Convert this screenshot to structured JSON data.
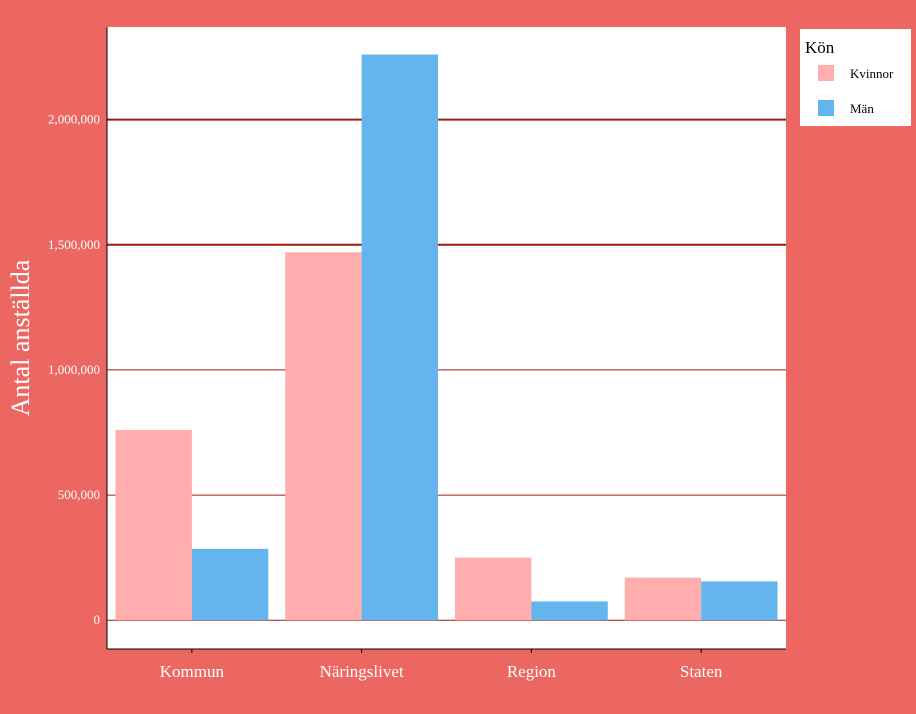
{
  "chart_data": {
    "type": "bar",
    "title": "",
    "xlabel": "",
    "ylabel": "Antal anställda",
    "categories": [
      "Kommun",
      "Näringslivet",
      "Region",
      "Staten"
    ],
    "series": [
      {
        "name": "Kvinnor",
        "values": [
          760000,
          1470000,
          250000,
          170000
        ]
      },
      {
        "name": "Män",
        "values": [
          285000,
          2260000,
          75000,
          155000
        ]
      }
    ],
    "ylim": [
      -115000,
      2370000
    ],
    "yticks": [
      0,
      500000,
      1000000,
      1500000,
      2000000
    ],
    "ytick_labels": [
      "0",
      "500,000",
      "1,000,000",
      "1,500,000",
      "2,000,000"
    ],
    "legend": {
      "title": "Kön",
      "placement": "right"
    },
    "grid": "horizontal major",
    "colors": {
      "background": "#ec6762",
      "panel": "#ffffff",
      "gridline": "#9b1b10",
      "Kvinnor": "#ffadad",
      "Män": "#64b5ed"
    }
  }
}
